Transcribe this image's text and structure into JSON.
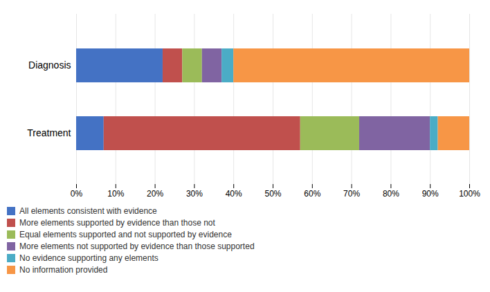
{
  "chart_data": {
    "type": "bar",
    "orientation": "horizontal",
    "stacked": true,
    "categories": [
      "Treatment",
      "Diagnosis"
    ],
    "series": [
      {
        "name": "All elements consistent with evidence",
        "color": "#4472C4",
        "values": [
          7,
          22
        ]
      },
      {
        "name": "More elements supported by evidence than those not",
        "color": "#C0504D",
        "values": [
          50,
          5
        ]
      },
      {
        "name": "Equal elements supported and not supported by evidence",
        "color": "#9BBB59",
        "values": [
          15,
          5
        ]
      },
      {
        "name": "More elements not supported by evidence than those supported",
        "color": "#8064A2",
        "values": [
          18,
          5
        ]
      },
      {
        "name": "No evidence supporting any elements",
        "color": "#4BACC6",
        "values": [
          2,
          3
        ]
      },
      {
        "name": "No information provided",
        "color": "#F79646",
        "values": [
          8,
          60
        ]
      }
    ],
    "xlim": [
      0,
      100
    ],
    "xticks": [
      {
        "value": 0,
        "label": "0%"
      },
      {
        "value": 10,
        "label": "10%"
      },
      {
        "value": 20,
        "label": "20%"
      },
      {
        "value": 30,
        "label": "30%"
      },
      {
        "value": 40,
        "label": "40%"
      },
      {
        "value": 50,
        "label": "50%"
      },
      {
        "value": 60,
        "label": "60%"
      },
      {
        "value": 70,
        "label": "70%"
      },
      {
        "value": 80,
        "label": "80%"
      },
      {
        "value": 90,
        "label": "90%"
      },
      {
        "value": 100,
        "label": "100%"
      }
    ],
    "grid": true,
    "legend": "lower left"
  }
}
